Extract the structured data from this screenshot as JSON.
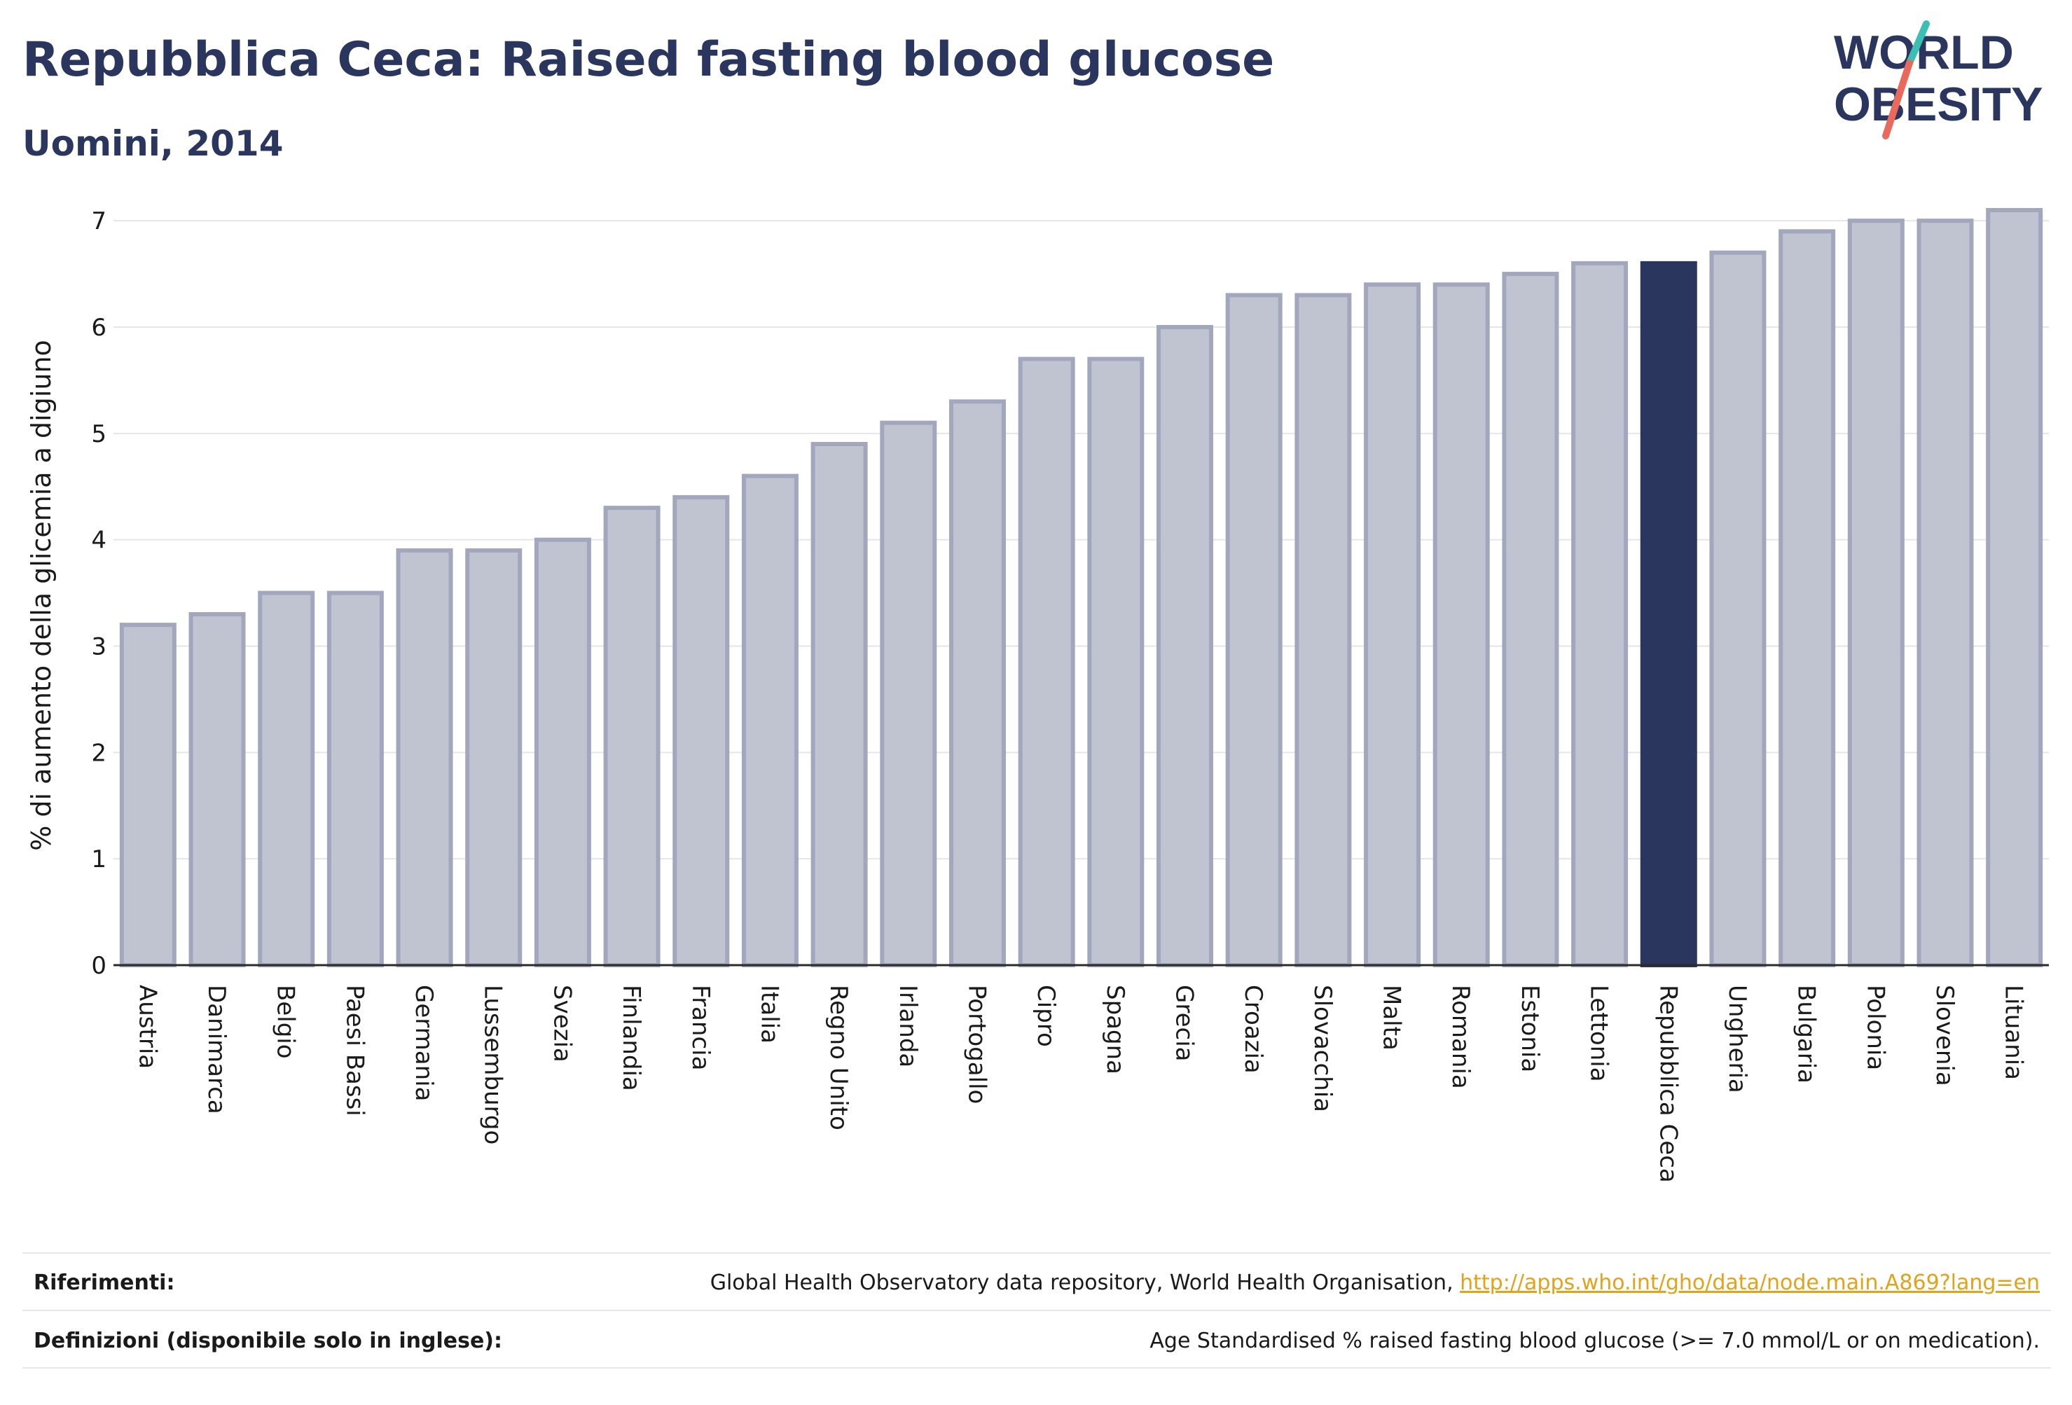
{
  "header": {
    "title": "Repubblica Ceca: Raised fasting blood glucose",
    "subtitle": "Uomini, 2014"
  },
  "logo": {
    "line1": "WORLD",
    "line2": "OBESITY",
    "colors": {
      "text": "#2b365f",
      "slash_top": "#3bbfb3",
      "slash_bottom": "#e96a5d"
    }
  },
  "chart_data": {
    "type": "bar",
    "ylabel": "% di aumento della glicemia a digiuno",
    "ylim": [
      0,
      7.35
    ],
    "yticks": [
      0,
      1,
      2,
      3,
      4,
      5,
      6,
      7
    ],
    "grid": true,
    "categories": [
      "Austria",
      "Danimarca",
      "Belgio",
      "Paesi Bassi",
      "Germania",
      "Lussemburgo",
      "Svezia",
      "Finlandia",
      "Francia",
      "Italia",
      "Regno Unito",
      "Irlanda",
      "Portogallo",
      "Cipro",
      "Spagna",
      "Grecia",
      "Croazia",
      "Slovacchia",
      "Malta",
      "Romania",
      "Estonia",
      "Lettonia",
      "Repubblica Ceca",
      "Ungheria",
      "Bulgaria",
      "Polonia",
      "Slovenia",
      "Lituania"
    ],
    "values": [
      3.2,
      3.3,
      3.5,
      3.5,
      3.9,
      3.9,
      4.0,
      4.3,
      4.4,
      4.6,
      4.9,
      5.1,
      5.3,
      5.7,
      5.7,
      6.0,
      6.3,
      6.3,
      6.4,
      6.4,
      6.5,
      6.6,
      6.6,
      6.7,
      6.9,
      7.0,
      7.0,
      7.1
    ],
    "highlight": "Repubblica Ceca",
    "colors": {
      "bar": "#c0c3d0",
      "bar_edge": "#a2a7bd",
      "highlight": "#2b365f"
    }
  },
  "footer": {
    "references_label": "Riferimenti:",
    "references_text": "Global Health Observatory data repository, World Health Organisation, ",
    "references_link": "http://apps.who.int/gho/data/node.main.A869?lang=en",
    "definitions_label": "Definizioni (disponibile solo in inglese):",
    "definitions_text": "Age Standardised % raised fasting blood glucose (>= 7.0 mmol/L or on medication)."
  }
}
